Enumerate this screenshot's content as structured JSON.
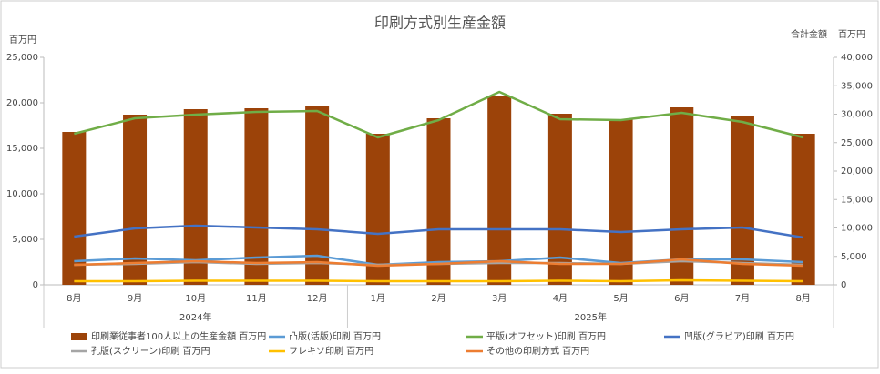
{
  "chart_data": {
    "type": "combo",
    "title": "印刷方式別生産金額",
    "y_label": "百万円",
    "y2_label": "合計金額",
    "y2_unit": "百万円",
    "categories": [
      "8月",
      "9月",
      "10月",
      "11月",
      "12月",
      "1月",
      "2月",
      "3月",
      "4月",
      "5月",
      "6月",
      "7月",
      "8月"
    ],
    "groups": [
      {
        "label": "2024年",
        "span": 5
      },
      {
        "label": "2025年",
        "span": 8
      }
    ],
    "ylim": [
      0,
      25000
    ],
    "yticks": [
      0,
      {
        "value": 5000,
        "label": "5,000"
      },
      {
        "value": 10000,
        "label": "10,000"
      },
      {
        "value": 15000,
        "label": "15,000"
      },
      {
        "value": 20000,
        "label": "20,000"
      },
      {
        "value": 25000,
        "label": "25,000"
      }
    ],
    "y2lim": [
      0,
      40000
    ],
    "y2ticks": [
      0,
      {
        "value": 5000,
        "label": "5,000"
      },
      {
        "value": 10000,
        "label": "10,000"
      },
      {
        "value": 15000,
        "label": "15,000"
      },
      {
        "value": 20000,
        "label": "20,000"
      },
      {
        "value": 25000,
        "label": "25,000"
      },
      {
        "value": 30000,
        "label": "30,000"
      },
      {
        "value": 35000,
        "label": "35,000"
      },
      {
        "value": 40000,
        "label": "40,000"
      }
    ],
    "series": [
      {
        "name": "印刷業従事者100人以上の生産金額 百万円",
        "kind": "bar",
        "axis": "y2",
        "color": "#9c4309",
        "values": [
          26880,
          29920,
          30880,
          31040,
          31360,
          26560,
          29280,
          33120,
          30080,
          29120,
          31200,
          29760,
          26560
        ]
      },
      {
        "name": "凸版(活版)印刷 百万円",
        "kind": "line",
        "color": "#5b9bd5",
        "values": [
          2600,
          2900,
          2700,
          3000,
          3200,
          2200,
          2500,
          2600,
          3000,
          2400,
          2800,
          2800,
          2500
        ]
      },
      {
        "name": "平版(オフセット)印刷 百万円",
        "kind": "line",
        "color": "#70ad47",
        "values": [
          16600,
          18300,
          18700,
          19000,
          19100,
          16200,
          18100,
          21200,
          18200,
          18100,
          18900,
          17900,
          16200
        ]
      },
      {
        "name": "凹版(グラビア)印刷 百万円",
        "kind": "line",
        "color": "#4472c4",
        "values": [
          5300,
          6200,
          6500,
          6300,
          6100,
          5600,
          6100,
          6100,
          6100,
          5800,
          6100,
          6300,
          5200
        ]
      },
      {
        "name": "孔版(スクリーン)印刷 百万円",
        "kind": "line",
        "color": "#a5a5a5",
        "values": [
          2200,
          2300,
          2500,
          2300,
          2400,
          2200,
          2300,
          2400,
          2400,
          2300,
          2600,
          2400,
          2200
        ]
      },
      {
        "name": "フレキソ印刷 百万円",
        "kind": "line",
        "color": "#ffc000",
        "values": [
          400,
          400,
          450,
          450,
          450,
          400,
          400,
          400,
          450,
          400,
          500,
          450,
          400
        ]
      },
      {
        "name": "その他の印刷方式 百万円",
        "kind": "line",
        "color": "#ed7d31",
        "values": [
          2200,
          2400,
          2600,
          2400,
          2500,
          2100,
          2300,
          2600,
          2300,
          2300,
          2800,
          2300,
          2100
        ]
      }
    ]
  }
}
